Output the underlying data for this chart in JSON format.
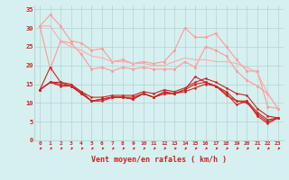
{
  "x": [
    0,
    1,
    2,
    3,
    4,
    5,
    6,
    7,
    8,
    9,
    10,
    11,
    12,
    13,
    14,
    15,
    16,
    17,
    18,
    19,
    20,
    21,
    22,
    23
  ],
  "series": [
    {
      "color": "#ff9999",
      "lw": 0.8,
      "marker": "o",
      "markersize": 1.8,
      "y": [
        30.5,
        33.5,
        30.5,
        26.5,
        26.0,
        24.0,
        24.5,
        21.0,
        21.5,
        20.5,
        21.0,
        20.5,
        21.0,
        24.0,
        30.0,
        27.5,
        27.5,
        28.5,
        25.0,
        21.5,
        18.5,
        18.5,
        9.0,
        8.5
      ]
    },
    {
      "color": "#ff9999",
      "lw": 0.8,
      "marker": "o",
      "markersize": 1.8,
      "y": [
        30.5,
        19.0,
        26.5,
        26.0,
        23.0,
        19.0,
        19.5,
        18.5,
        19.5,
        19.0,
        19.5,
        19.0,
        19.0,
        19.0,
        21.0,
        19.5,
        25.0,
        24.0,
        22.5,
        18.5,
        16.0,
        14.5,
        12.5,
        8.5
      ]
    },
    {
      "color": "#ffaaaa",
      "lw": 0.8,
      "marker": null,
      "markersize": 0,
      "y": [
        30.5,
        30.5,
        26.5,
        25.0,
        24.0,
        22.5,
        22.0,
        21.0,
        21.0,
        20.5,
        20.5,
        20.0,
        20.0,
        21.0,
        22.0,
        21.5,
        21.5,
        21.0,
        21.0,
        20.5,
        19.5,
        18.0,
        12.5,
        8.5
      ]
    },
    {
      "color": "#cc2222",
      "lw": 0.8,
      "marker": "o",
      "markersize": 1.5,
      "y": [
        13.5,
        19.5,
        15.5,
        14.5,
        12.5,
        10.5,
        11.0,
        11.5,
        11.5,
        11.0,
        12.5,
        11.5,
        12.5,
        12.5,
        13.5,
        17.0,
        15.5,
        14.5,
        12.5,
        9.5,
        10.5,
        6.5,
        4.5,
        6.0
      ]
    },
    {
      "color": "#cc2222",
      "lw": 0.8,
      "marker": "o",
      "markersize": 1.5,
      "y": [
        13.5,
        15.5,
        15.0,
        14.5,
        13.0,
        10.5,
        11.0,
        11.5,
        11.5,
        11.0,
        12.5,
        11.5,
        13.0,
        12.5,
        13.0,
        14.0,
        15.0,
        14.5,
        13.0,
        10.5,
        10.5,
        7.5,
        5.5,
        6.0
      ]
    },
    {
      "color": "#cc2222",
      "lw": 0.8,
      "marker": "o",
      "markersize": 1.5,
      "y": [
        13.5,
        15.5,
        15.5,
        15.0,
        13.0,
        11.5,
        11.5,
        12.0,
        12.0,
        12.0,
        13.0,
        12.5,
        13.5,
        13.0,
        14.0,
        15.5,
        16.5,
        15.5,
        14.0,
        12.5,
        12.0,
        8.5,
        6.5,
        6.0
      ]
    },
    {
      "color": "#cc2222",
      "lw": 0.8,
      "marker": "o",
      "markersize": 1.5,
      "y": [
        13.5,
        15.5,
        14.5,
        14.5,
        12.5,
        10.5,
        10.5,
        11.5,
        11.5,
        11.5,
        12.5,
        11.5,
        12.5,
        12.5,
        13.5,
        15.0,
        15.5,
        14.5,
        12.0,
        10.5,
        10.0,
        7.0,
        5.0,
        6.0
      ]
    }
  ],
  "xlabel": "Vent moyen/en rafales ( km/h )",
  "ylim": [
    0,
    36
  ],
  "xlim": [
    -0.5,
    23.5
  ],
  "yticks": [
    0,
    5,
    10,
    15,
    20,
    25,
    30,
    35
  ],
  "bg_color": "#d6f0f0",
  "grid_color": "#b8d8d8",
  "xlabel_color": "#cc2222",
  "tick_color": "#cc2222"
}
